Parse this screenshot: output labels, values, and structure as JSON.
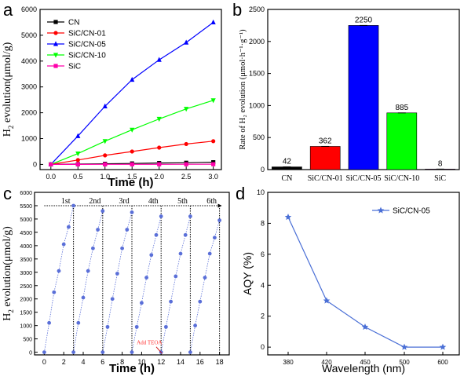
{
  "chart_data": [
    {
      "panel": "a",
      "type": "line",
      "xlabel": "Time (h)",
      "ylabel_main": "H",
      "ylabel_sub": "2",
      "ylabel_rest": " evolution(μmol/g)",
      "xlim": [
        -0.2,
        3.15
      ],
      "ylim": [
        -200,
        6000
      ],
      "xticks": [
        "0.0",
        "0.5",
        "1.0",
        "1.5",
        "2.0",
        "2.5",
        "3.0"
      ],
      "yticks": [
        "0",
        "1000",
        "2000",
        "3000",
        "4000",
        "5000",
        "6000"
      ],
      "x": [
        0,
        0.5,
        1.0,
        1.5,
        2.0,
        2.5,
        3.0
      ],
      "legend_position": "top-left",
      "series": [
        {
          "name": "CN",
          "color": "#000000",
          "marker": "square",
          "values": [
            0,
            12,
            25,
            38,
            55,
            65,
            85
          ]
        },
        {
          "name": "SiC/CN-01",
          "color": "#ff0000",
          "marker": "circle",
          "values": [
            0,
            170,
            350,
            500,
            650,
            790,
            900
          ]
        },
        {
          "name": "SiC/CN-05",
          "color": "#0000ff",
          "marker": "triangle-up",
          "values": [
            0,
            1100,
            2250,
            3280,
            4050,
            4720,
            5500
          ]
        },
        {
          "name": "SiC/CN-10",
          "color": "#00ff00",
          "marker": "triangle-down",
          "values": [
            0,
            420,
            900,
            1340,
            1760,
            2150,
            2480
          ]
        },
        {
          "name": "SiC",
          "color": "#ff00aa",
          "marker": "square",
          "values": [
            0,
            2,
            3,
            4,
            5,
            6,
            8
          ]
        }
      ]
    },
    {
      "panel": "b",
      "type": "bar",
      "ylabel": "Rate of H₂ evolution (μmol·h⁻¹·g⁻¹)",
      "ylim": [
        0,
        2500
      ],
      "yticks": [
        "0",
        "500",
        "1000",
        "1500",
        "2000",
        "2500"
      ],
      "categories": [
        "CN",
        "SiC/CN-01",
        "SiC/CN-05",
        "SiC/CN-10",
        "SiC"
      ],
      "values": [
        42,
        362,
        2250,
        885,
        8
      ],
      "value_labels": [
        "42",
        "362",
        "2250",
        "885",
        "8"
      ],
      "colors": [
        "#000000",
        "#ff0000",
        "#0000ff",
        "#00ff00",
        "#ff00ff"
      ]
    },
    {
      "panel": "c",
      "type": "scatter",
      "xlabel": "Time (h)",
      "ylabel_main": "H",
      "ylabel_sub": "2",
      "ylabel_rest": " evolution(μmol/g)",
      "xlim": [
        -1,
        19
      ],
      "ylim": [
        -100,
        6000
      ],
      "xticks": [
        "0",
        "2",
        "4",
        "6",
        "8",
        "10",
        "12",
        "14",
        "16",
        "18"
      ],
      "yticks": [
        "0",
        "500",
        "1000",
        "1500",
        "2000",
        "2500",
        "3000",
        "3500",
        "4000",
        "4500",
        "5000",
        "5500",
        "6000"
      ],
      "cycle_labels": [
        "1st",
        "2nd",
        "3rd",
        "4th",
        "5th",
        "6th"
      ],
      "annotation": "Add TEOA",
      "annotation_color": "#ff3333",
      "marker_color": "#5a6fd8",
      "cycles": [
        {
          "x": [
            0,
            0.5,
            1.0,
            1.5,
            2.0,
            2.5,
            3.0
          ],
          "y": [
            0,
            1100,
            2250,
            3050,
            4050,
            4700,
            5500
          ]
        },
        {
          "x": [
            3,
            3.5,
            4.0,
            4.5,
            5.0,
            5.5,
            6.0
          ],
          "y": [
            0,
            1100,
            2050,
            3050,
            3900,
            4600,
            5300
          ]
        },
        {
          "x": [
            6,
            6.5,
            7.0,
            7.5,
            8.0,
            8.5,
            9.0
          ],
          "y": [
            0,
            950,
            2000,
            2950,
            3900,
            4600,
            5250
          ]
        },
        {
          "x": [
            9,
            9.5,
            10.0,
            10.5,
            11.0,
            11.5,
            12.0
          ],
          "y": [
            0,
            950,
            1850,
            2800,
            3650,
            4400,
            5100
          ]
        },
        {
          "x": [
            12,
            12.5,
            13.0,
            13.5,
            14.0,
            14.5,
            15.0
          ],
          "y": [
            0,
            950,
            1900,
            2850,
            3700,
            4400,
            5100
          ]
        },
        {
          "x": [
            15,
            15.5,
            16.0,
            16.5,
            17.0,
            17.5,
            18.0
          ],
          "y": [
            0,
            1000,
            1900,
            2800,
            3700,
            4300,
            4950
          ]
        }
      ]
    },
    {
      "panel": "d",
      "type": "line",
      "xlabel": "Wavelength (nm)",
      "ylabel": "AQY (%)",
      "ylim": [
        -0.5,
        10
      ],
      "yticks": [
        "0",
        "2",
        "4",
        "6",
        "8",
        "10"
      ],
      "categories": [
        "380",
        "420",
        "450",
        "500",
        "600"
      ],
      "series": [
        {
          "name": "SiC/CN-05",
          "color": "#4a6fd6",
          "marker": "star",
          "values": [
            8.4,
            3.0,
            1.3,
            0.0,
            0.0
          ]
        }
      ],
      "legend_position": "top-right"
    }
  ],
  "panel_labels": [
    "a",
    "b",
    "c",
    "d"
  ]
}
